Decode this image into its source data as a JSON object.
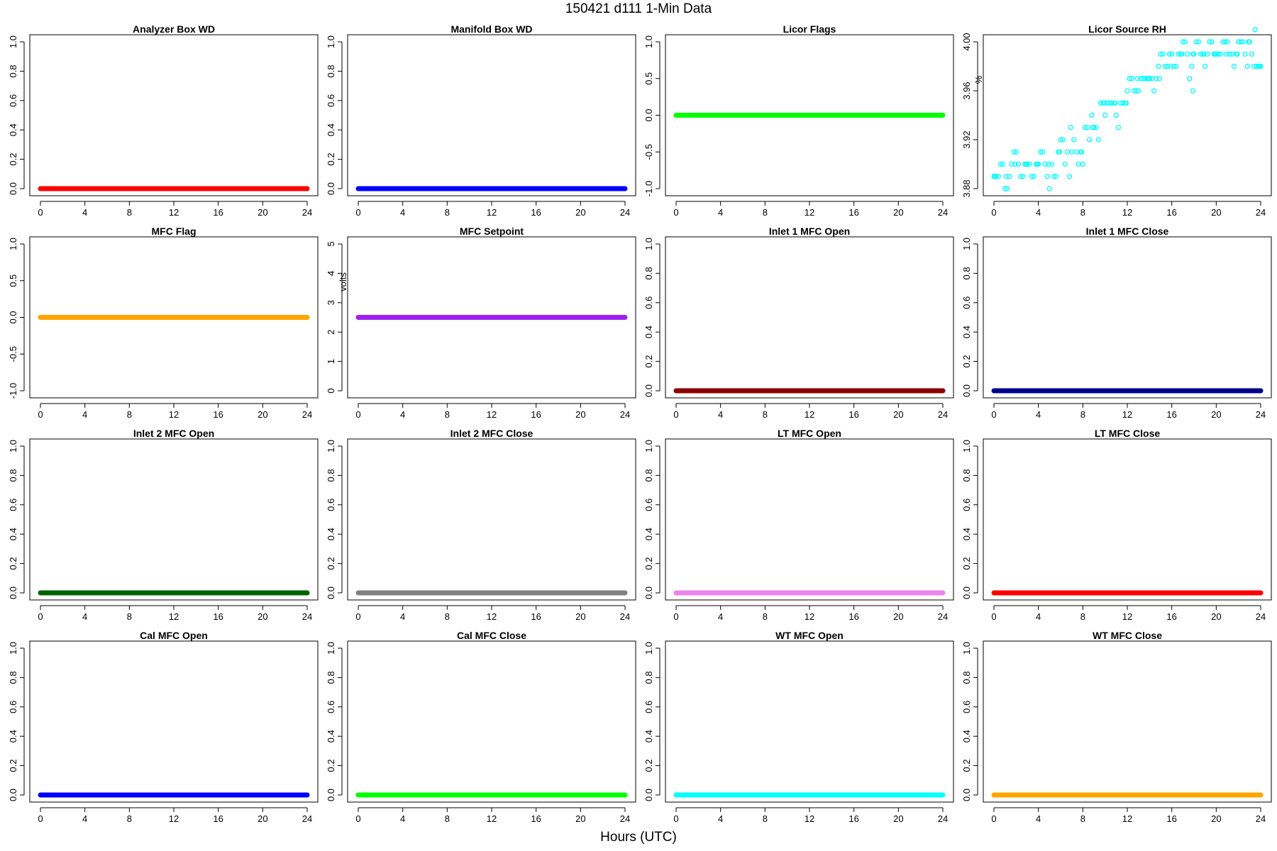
{
  "figure": {
    "title": "150421   d111   1-Min Data",
    "xlabel": "Hours (UTC)"
  },
  "chart_data": [
    {
      "type": "scatter",
      "title": "Analyzer Box WD",
      "ylabel": "",
      "color": "#ff0000",
      "xlim": [
        0,
        24
      ],
      "ylim": [
        0,
        1
      ],
      "xticks": [
        "0",
        "4",
        "8",
        "12",
        "16",
        "20",
        "24"
      ],
      "yticks": [
        "0.0",
        "0.2",
        "0.4",
        "0.6",
        "0.8",
        "1.0"
      ],
      "series": [
        {
          "x": [
            0,
            24
          ],
          "y": [
            0,
            0
          ],
          "style": "dense-constant"
        }
      ]
    },
    {
      "type": "scatter",
      "title": "Manifold Box WD",
      "ylabel": "",
      "color": "#0000ff",
      "xlim": [
        0,
        24
      ],
      "ylim": [
        0,
        1
      ],
      "xticks": [
        "0",
        "4",
        "8",
        "12",
        "16",
        "20",
        "24"
      ],
      "yticks": [
        "0.0",
        "0.2",
        "0.4",
        "0.6",
        "0.8",
        "1.0"
      ],
      "series": [
        {
          "x": [
            0,
            24
          ],
          "y": [
            0,
            0
          ],
          "style": "dense-constant"
        }
      ]
    },
    {
      "type": "scatter",
      "title": "Licor Flags",
      "ylabel": "",
      "color": "#00ff00",
      "xlim": [
        0,
        24
      ],
      "ylim": [
        -1,
        1
      ],
      "xticks": [
        "0",
        "4",
        "8",
        "12",
        "16",
        "20",
        "24"
      ],
      "yticks": [
        "-1.0",
        "-0.5",
        "0.0",
        "0.5",
        "1.0"
      ],
      "series": [
        {
          "x": [
            0,
            24
          ],
          "y": [
            0,
            0
          ],
          "style": "dense-constant"
        }
      ]
    },
    {
      "type": "scatter",
      "title": "Licor Source RH",
      "ylabel": "%",
      "color": "#00ffff",
      "xlim": [
        0,
        24
      ],
      "ylim": [
        3.88,
        4.0
      ],
      "xticks": [
        "0",
        "4",
        "8",
        "12",
        "16",
        "20",
        "24"
      ],
      "yticks": [
        "3.88",
        "3.92",
        "3.96",
        "4.00"
      ],
      "series": [
        {
          "style": "points",
          "x": [
            0.0,
            0.2,
            0.4,
            0.6,
            0.8,
            1.0,
            1.2,
            1.4,
            1.6,
            1.8,
            2.0,
            2.2,
            2.4,
            2.6,
            2.8,
            3.0,
            3.2,
            3.4,
            3.6,
            3.8,
            4.0,
            4.2,
            4.4,
            4.6,
            4.8,
            5.0,
            5.2,
            5.4,
            5.6,
            5.8,
            6.0,
            6.2,
            6.4,
            6.6,
            6.8,
            7.0,
            7.2,
            7.4,
            7.6,
            7.8,
            8.0,
            8.2,
            8.4,
            8.6,
            8.8,
            9.0,
            9.2,
            9.4,
            9.6,
            9.8,
            10.0,
            10.2,
            10.4,
            10.6,
            10.8,
            11.0,
            11.2,
            11.4,
            11.6,
            11.8,
            12.0,
            12.2,
            12.4,
            12.6,
            12.8,
            13.0,
            13.2,
            13.4,
            13.6,
            13.8,
            14.0,
            14.2,
            14.4,
            14.6,
            14.8,
            15.0,
            15.2,
            15.4,
            15.6,
            15.8,
            16.0,
            16.2,
            16.4,
            16.6,
            16.8,
            17.0,
            17.2,
            17.4,
            17.6,
            17.8,
            18.0,
            18.2,
            18.4,
            18.6,
            18.8,
            19.0,
            19.2,
            19.4,
            19.6,
            19.8,
            20.0,
            20.2,
            20.4,
            20.6,
            20.8,
            21.0,
            21.2,
            21.4,
            21.6,
            21.8,
            22.0,
            22.2,
            22.4,
            22.6,
            22.8,
            23.0,
            23.2,
            23.4,
            23.6,
            23.8,
            24.0,
            0.1,
            1.1,
            1.9,
            2.9,
            3.9,
            4.9,
            5.9,
            6.9,
            7.9,
            8.9,
            9.9,
            10.9,
            11.9,
            12.9,
            13.9,
            14.9,
            15.9,
            16.9,
            17.9,
            18.9,
            19.9,
            20.9,
            21.9,
            22.9,
            23.9,
            23.5,
            17.9
          ],
          "y": [
            3.89,
            3.89,
            3.89,
            3.9,
            3.9,
            3.88,
            3.88,
            3.89,
            3.9,
            3.91,
            3.91,
            3.9,
            3.89,
            3.89,
            3.9,
            3.9,
            3.9,
            3.89,
            3.89,
            3.9,
            3.9,
            3.91,
            3.91,
            3.9,
            3.89,
            3.88,
            3.9,
            3.89,
            3.89,
            3.91,
            3.92,
            3.92,
            3.9,
            3.91,
            3.89,
            3.91,
            3.92,
            3.91,
            3.9,
            3.91,
            3.9,
            3.93,
            3.93,
            3.92,
            3.94,
            3.93,
            3.93,
            3.92,
            3.95,
            3.95,
            3.94,
            3.95,
            3.95,
            3.95,
            3.95,
            3.94,
            3.93,
            3.95,
            3.95,
            3.95,
            3.96,
            3.97,
            3.97,
            3.96,
            3.96,
            3.96,
            3.97,
            3.97,
            3.97,
            3.97,
            3.97,
            3.97,
            3.96,
            3.97,
            3.98,
            3.99,
            3.99,
            3.98,
            3.98,
            3.99,
            3.99,
            3.98,
            3.98,
            3.99,
            3.99,
            4.0,
            4.0,
            3.99,
            3.97,
            3.98,
            3.99,
            4.0,
            4.0,
            3.99,
            3.99,
            3.98,
            3.99,
            4.0,
            4.0,
            3.99,
            3.99,
            3.99,
            3.99,
            4.0,
            4.0,
            4.0,
            3.99,
            3.99,
            3.98,
            3.99,
            4.0,
            4.0,
            4.0,
            3.99,
            3.98,
            4.0,
            3.99,
            3.98,
            3.98,
            3.98,
            3.98,
            3.89,
            3.89,
            3.9,
            3.9,
            3.9,
            3.9,
            3.91,
            3.93,
            3.91,
            3.93,
            3.95,
            3.95,
            3.95,
            3.97,
            3.97,
            3.97,
            3.98,
            3.99,
            3.99,
            3.99,
            3.99,
            3.99,
            3.99,
            4.0,
            3.98,
            4.01,
            3.96
          ]
        }
      ]
    },
    {
      "type": "scatter",
      "title": "MFC Flag",
      "ylabel": "",
      "color": "#ffa500",
      "xlim": [
        0,
        24
      ],
      "ylim": [
        -1,
        1
      ],
      "xticks": [
        "0",
        "4",
        "8",
        "12",
        "16",
        "20",
        "24"
      ],
      "yticks": [
        "-1.0",
        "-0.5",
        "0.0",
        "0.5",
        "1.0"
      ],
      "series": [
        {
          "x": [
            0,
            24
          ],
          "y": [
            0,
            0
          ],
          "style": "dense-constant"
        }
      ]
    },
    {
      "type": "scatter",
      "title": "MFC Setpoint",
      "ylabel": "volts",
      "color": "#a020f0",
      "xlim": [
        0,
        24
      ],
      "ylim": [
        0,
        5
      ],
      "xticks": [
        "0",
        "4",
        "8",
        "12",
        "16",
        "20",
        "24"
      ],
      "yticks": [
        "0",
        "1",
        "2",
        "3",
        "4",
        "5"
      ],
      "series": [
        {
          "x": [
            0,
            24
          ],
          "y": [
            2.5,
            2.5
          ],
          "style": "dense-constant"
        }
      ]
    },
    {
      "type": "scatter",
      "title": "Inlet 1 MFC Open",
      "ylabel": "",
      "color": "#8b0000",
      "xlim": [
        0,
        24
      ],
      "ylim": [
        0,
        1
      ],
      "xticks": [
        "0",
        "4",
        "8",
        "12",
        "16",
        "20",
        "24"
      ],
      "yticks": [
        "0.0",
        "0.2",
        "0.4",
        "0.6",
        "0.8",
        "1.0"
      ],
      "series": [
        {
          "x": [
            0,
            24
          ],
          "y": [
            0,
            0
          ],
          "style": "dense-constant"
        }
      ]
    },
    {
      "type": "scatter",
      "title": "Inlet 1 MFC Close",
      "ylabel": "",
      "color": "#00008b",
      "xlim": [
        0,
        24
      ],
      "ylim": [
        0,
        1
      ],
      "xticks": [
        "0",
        "4",
        "8",
        "12",
        "16",
        "20",
        "24"
      ],
      "yticks": [
        "0.0",
        "0.2",
        "0.4",
        "0.6",
        "0.8",
        "1.0"
      ],
      "series": [
        {
          "x": [
            0,
            24
          ],
          "y": [
            0,
            0
          ],
          "style": "dense-constant"
        }
      ]
    },
    {
      "type": "scatter",
      "title": "Inlet 2 MFC Open",
      "ylabel": "",
      "color": "#006400",
      "xlim": [
        0,
        24
      ],
      "ylim": [
        0,
        1
      ],
      "xticks": [
        "0",
        "4",
        "8",
        "12",
        "16",
        "20",
        "24"
      ],
      "yticks": [
        "0.0",
        "0.2",
        "0.4",
        "0.6",
        "0.8",
        "1.0"
      ],
      "series": [
        {
          "x": [
            0,
            24
          ],
          "y": [
            0,
            0
          ],
          "style": "dense-constant"
        }
      ]
    },
    {
      "type": "scatter",
      "title": "Inlet 2 MFC Close",
      "ylabel": "",
      "color": "#808080",
      "xlim": [
        0,
        24
      ],
      "ylim": [
        0,
        1
      ],
      "xticks": [
        "0",
        "4",
        "8",
        "12",
        "16",
        "20",
        "24"
      ],
      "yticks": [
        "0.0",
        "0.2",
        "0.4",
        "0.6",
        "0.8",
        "1.0"
      ],
      "series": [
        {
          "x": [
            0,
            24
          ],
          "y": [
            0,
            0
          ],
          "style": "dense-constant"
        }
      ]
    },
    {
      "type": "scatter",
      "title": "LT MFC Open",
      "ylabel": "",
      "color": "#ee82ee",
      "xlim": [
        0,
        24
      ],
      "ylim": [
        0,
        1
      ],
      "xticks": [
        "0",
        "4",
        "8",
        "12",
        "16",
        "20",
        "24"
      ],
      "yticks": [
        "0.0",
        "0.2",
        "0.4",
        "0.6",
        "0.8",
        "1.0"
      ],
      "series": [
        {
          "x": [
            0,
            24
          ],
          "y": [
            0,
            0
          ],
          "style": "dense-constant"
        }
      ]
    },
    {
      "type": "scatter",
      "title": "LT MFC Close",
      "ylabel": "",
      "color": "#ff0000",
      "xlim": [
        0,
        24
      ],
      "ylim": [
        0,
        1
      ],
      "xticks": [
        "0",
        "4",
        "8",
        "12",
        "16",
        "20",
        "24"
      ],
      "yticks": [
        "0.0",
        "0.2",
        "0.4",
        "0.6",
        "0.8",
        "1.0"
      ],
      "series": [
        {
          "x": [
            0,
            24
          ],
          "y": [
            0,
            0
          ],
          "style": "dense-constant"
        }
      ]
    },
    {
      "type": "scatter",
      "title": "Cal MFC Open",
      "ylabel": "",
      "color": "#0000ff",
      "xlim": [
        0,
        24
      ],
      "ylim": [
        0,
        1
      ],
      "xticks": [
        "0",
        "4",
        "8",
        "12",
        "16",
        "20",
        "24"
      ],
      "yticks": [
        "0.0",
        "0.2",
        "0.4",
        "0.6",
        "0.8",
        "1.0"
      ],
      "series": [
        {
          "x": [
            0,
            24
          ],
          "y": [
            0,
            0
          ],
          "style": "dense-constant"
        }
      ]
    },
    {
      "type": "scatter",
      "title": "Cal MFC Close",
      "ylabel": "",
      "color": "#00ff00",
      "xlim": [
        0,
        24
      ],
      "ylim": [
        0,
        1
      ],
      "xticks": [
        "0",
        "4",
        "8",
        "12",
        "16",
        "20",
        "24"
      ],
      "yticks": [
        "0.0",
        "0.2",
        "0.4",
        "0.6",
        "0.8",
        "1.0"
      ],
      "series": [
        {
          "x": [
            0,
            24
          ],
          "y": [
            0,
            0
          ],
          "style": "dense-constant"
        }
      ]
    },
    {
      "type": "scatter",
      "title": "WT MFC Open",
      "ylabel": "",
      "color": "#00ffff",
      "xlim": [
        0,
        24
      ],
      "ylim": [
        0,
        1
      ],
      "xticks": [
        "0",
        "4",
        "8",
        "12",
        "16",
        "20",
        "24"
      ],
      "yticks": [
        "0.0",
        "0.2",
        "0.4",
        "0.6",
        "0.8",
        "1.0"
      ],
      "series": [
        {
          "x": [
            0,
            24
          ],
          "y": [
            0,
            0
          ],
          "style": "dense-constant"
        }
      ]
    },
    {
      "type": "scatter",
      "title": "WT MFC Close",
      "ylabel": "",
      "color": "#ffa500",
      "xlim": [
        0,
        24
      ],
      "ylim": [
        0,
        1
      ],
      "xticks": [
        "0",
        "4",
        "8",
        "12",
        "16",
        "20",
        "24"
      ],
      "yticks": [
        "0.0",
        "0.2",
        "0.4",
        "0.6",
        "0.8",
        "1.0"
      ],
      "series": [
        {
          "x": [
            0,
            24
          ],
          "y": [
            0,
            0
          ],
          "style": "dense-constant"
        }
      ]
    }
  ]
}
